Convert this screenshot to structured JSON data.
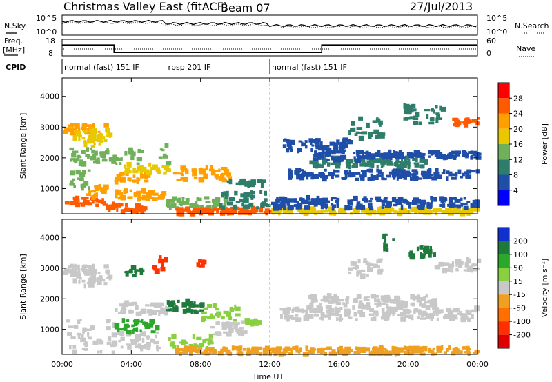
{
  "header": {
    "title": "Christmas Valley East (fitACF)",
    "beam": "Beam 07",
    "date": "27/Jul/2013"
  },
  "strips": {
    "noise_left": "N.Sky",
    "noise_right": "N.Search",
    "noise_tick_top": "10^5",
    "noise_tick_bottom": "10^0",
    "freq_left_1": "Freq.",
    "freq_left_2": "[MHz]",
    "freq_ticks": [
      "18",
      "8"
    ],
    "nave_right": "Nave",
    "nave_ticks": [
      "60",
      "0"
    ],
    "cpid_label": "CPID"
  },
  "modes": [
    {
      "label": "normal (fast) 151 IF",
      "start_h": 0,
      "end_h": 6
    },
    {
      "label": "rbsp 201 IF",
      "start_h": 6,
      "end_h": 12
    },
    {
      "label": "normal (fast) 151 IF",
      "start_h": 12,
      "end_h": 24
    }
  ],
  "power_scale": {
    "label": "Power [dB]",
    "ticks": [
      "28",
      "24",
      "20",
      "16",
      "12",
      "8",
      "4"
    ],
    "colors": [
      "#ff0000",
      "#ff5a00",
      "#ff9f00",
      "#e8c800",
      "#70b05a",
      "#2e7d6a",
      "#1f4ea8",
      "#0000ff"
    ]
  },
  "velocity_scale": {
    "label": "Velocity [m s⁻¹]",
    "ticks": [
      "200",
      "100",
      "50",
      "15",
      "-15",
      "-50",
      "-100",
      "-200"
    ],
    "colors": [
      "#1030d0",
      "#1e7a3c",
      "#2aa82a",
      "#88d040",
      "#c8c8c8",
      "#f0a020",
      "#ff7000",
      "#ff3000",
      "#e00000"
    ]
  },
  "chart_data": [
    {
      "type": "heatmap",
      "name": "power",
      "ylabel": "Slant Range [km]",
      "xlim": [
        0,
        24
      ],
      "ylim": [
        180,
        4600
      ],
      "yticks": [
        1000,
        2000,
        3000,
        4000
      ],
      "xticks": [
        "00:00",
        "04:00",
        "08:00",
        "12:00",
        "16:00",
        "20:00",
        "00:00"
      ],
      "xlabel": "Time UT",
      "cells": [
        [
          0.0,
          2.6,
          2800,
          3100,
          20
        ],
        [
          0.5,
          2.8,
          2500,
          2900,
          16
        ],
        [
          1.2,
          2.2,
          2300,
          2700,
          18
        ],
        [
          0.4,
          4.5,
          1800,
          2300,
          12
        ],
        [
          0.3,
          1.5,
          1000,
          1600,
          14
        ],
        [
          0.1,
          2.4,
          450,
          700,
          24
        ],
        [
          1.2,
          2.6,
          700,
          1100,
          22
        ],
        [
          2.5,
          4.6,
          250,
          500,
          26
        ],
        [
          3.0,
          5.8,
          650,
          950,
          22
        ],
        [
          3.0,
          4.8,
          1200,
          1500,
          20
        ],
        [
          3.4,
          6.0,
          1500,
          1800,
          18
        ],
        [
          5.5,
          6.0,
          1800,
          2800,
          12
        ],
        [
          6.3,
          9.6,
          1250,
          1700,
          20
        ],
        [
          6.0,
          9.5,
          350,
          700,
          14
        ],
        [
          9.5,
          11.5,
          1100,
          1300,
          8
        ],
        [
          6.5,
          12.0,
          180,
          350,
          26
        ],
        [
          9.0,
          11.8,
          350,
          900,
          10
        ],
        [
          12.0,
          24.0,
          180,
          350,
          18
        ],
        [
          12.0,
          24.0,
          350,
          700,
          4
        ],
        [
          13.0,
          24.0,
          1300,
          1600,
          6
        ],
        [
          14.0,
          21.0,
          1700,
          2000,
          8
        ],
        [
          14.5,
          17.0,
          1900,
          2200,
          6
        ],
        [
          16.5,
          18.5,
          2600,
          3300,
          10
        ],
        [
          19.5,
          22.0,
          3100,
          3700,
          8
        ],
        [
          22.5,
          24.0,
          3050,
          3300,
          24
        ],
        [
          17.0,
          24.0,
          2000,
          2200,
          6
        ],
        [
          12.5,
          16.5,
          2200,
          2600,
          4
        ]
      ]
    },
    {
      "type": "heatmap",
      "name": "velocity",
      "ylabel": "Slant Range [km]",
      "xlim": [
        0,
        24
      ],
      "ylim": [
        180,
        4600
      ],
      "yticks": [
        1000,
        2000,
        3000,
        4000
      ],
      "xticks": [
        "00:00",
        "04:00",
        "08:00",
        "12:00",
        "16:00",
        "20:00",
        "00:00"
      ],
      "xlabel": "Time UT",
      "cells": [
        [
          0.0,
          2.6,
          2800,
          3100,
          0
        ],
        [
          0.5,
          2.8,
          2400,
          2900,
          0
        ],
        [
          3.6,
          4.6,
          2700,
          3050,
          150
        ],
        [
          5.2,
          6.0,
          2900,
          3400,
          -150
        ],
        [
          7.7,
          8.2,
          3000,
          3300,
          -150
        ],
        [
          0.2,
          3.0,
          250,
          1300,
          0
        ],
        [
          2.5,
          5.5,
          350,
          900,
          0
        ],
        [
          3.0,
          5.4,
          900,
          1300,
          60
        ],
        [
          3.0,
          6.0,
          1500,
          1900,
          0
        ],
        [
          6.0,
          8.0,
          1550,
          1950,
          180
        ],
        [
          8.0,
          10.0,
          1300,
          1800,
          40
        ],
        [
          6.0,
          8.5,
          350,
          800,
          40
        ],
        [
          8.5,
          10.5,
          800,
          1300,
          0
        ],
        [
          6.5,
          12.0,
          180,
          400,
          -40
        ],
        [
          12.0,
          24.0,
          180,
          400,
          -40
        ],
        [
          12.5,
          24.0,
          1300,
          1700,
          0
        ],
        [
          14.0,
          21.5,
          1700,
          2100,
          0
        ],
        [
          16.5,
          18.5,
          2700,
          3300,
          0
        ],
        [
          18.5,
          19.2,
          3600,
          4100,
          180
        ],
        [
          20.0,
          21.5,
          3300,
          3700,
          180
        ],
        [
          21.5,
          24.0,
          2900,
          3300,
          0
        ],
        [
          10.5,
          11.5,
          1150,
          1300,
          30
        ]
      ]
    }
  ]
}
